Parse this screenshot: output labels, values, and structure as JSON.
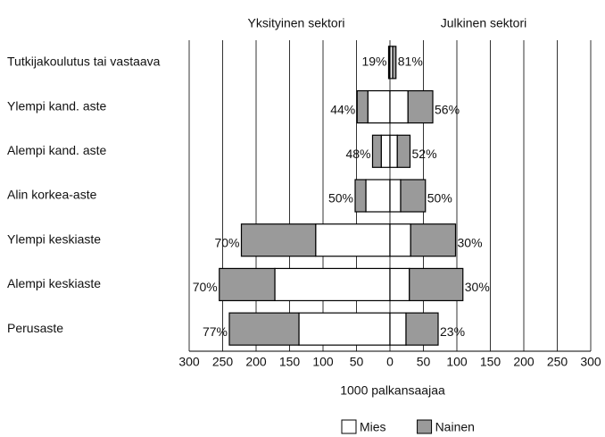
{
  "chart_data": {
    "type": "butterfly-bar",
    "categories": [
      "Tutkijakoulutus tai vastaava",
      "Ylempi kand. aste",
      "Alempi kand. aste",
      "Alin korkea-aste",
      "Ylempi keskiaste",
      "Alempi keskiaste",
      "Perusaste"
    ],
    "panels": [
      {
        "title": "Yksityinen sektori",
        "direction": "left",
        "series": [
          {
            "name": "Mies",
            "color": "#ffffff",
            "values": [
              1,
              33,
              13,
              36,
              111,
              172,
              136
            ]
          },
          {
            "name": "Nainen",
            "color": "#9a9a9a",
            "values": [
              1,
              16,
              13,
              16,
              111,
              83,
              104
            ]
          }
        ],
        "percent_labels": [
          "19%",
          "44%",
          "48%",
          "50%",
          "70%",
          "70%",
          "77%"
        ]
      },
      {
        "title": "Julkinen sektori",
        "direction": "right",
        "series": [
          {
            "name": "Mies",
            "color": "#ffffff",
            "values": [
              4,
              27,
              11,
              16,
              31,
              29,
              24
            ]
          },
          {
            "name": "Nainen",
            "color": "#9a9a9a",
            "values": [
              5,
              37,
              19,
              37,
              67,
              80,
              48
            ]
          }
        ],
        "percent_labels": [
          "81%",
          "56%",
          "52%",
          "50%",
          "30%",
          "30%",
          "23%"
        ]
      }
    ],
    "xlabel": "1000 palkansaajaa",
    "xlim": [
      -300,
      300
    ],
    "xticks": [
      {
        "value": -300,
        "label": "300"
      },
      {
        "value": -250,
        "label": "250"
      },
      {
        "value": -200,
        "label": "200"
      },
      {
        "value": -150,
        "label": "150"
      },
      {
        "value": -100,
        "label": "100"
      },
      {
        "value": -50,
        "label": "50"
      },
      0,
      50,
      100,
      150,
      200,
      250,
      300
    ],
    "grid": true
  }
}
